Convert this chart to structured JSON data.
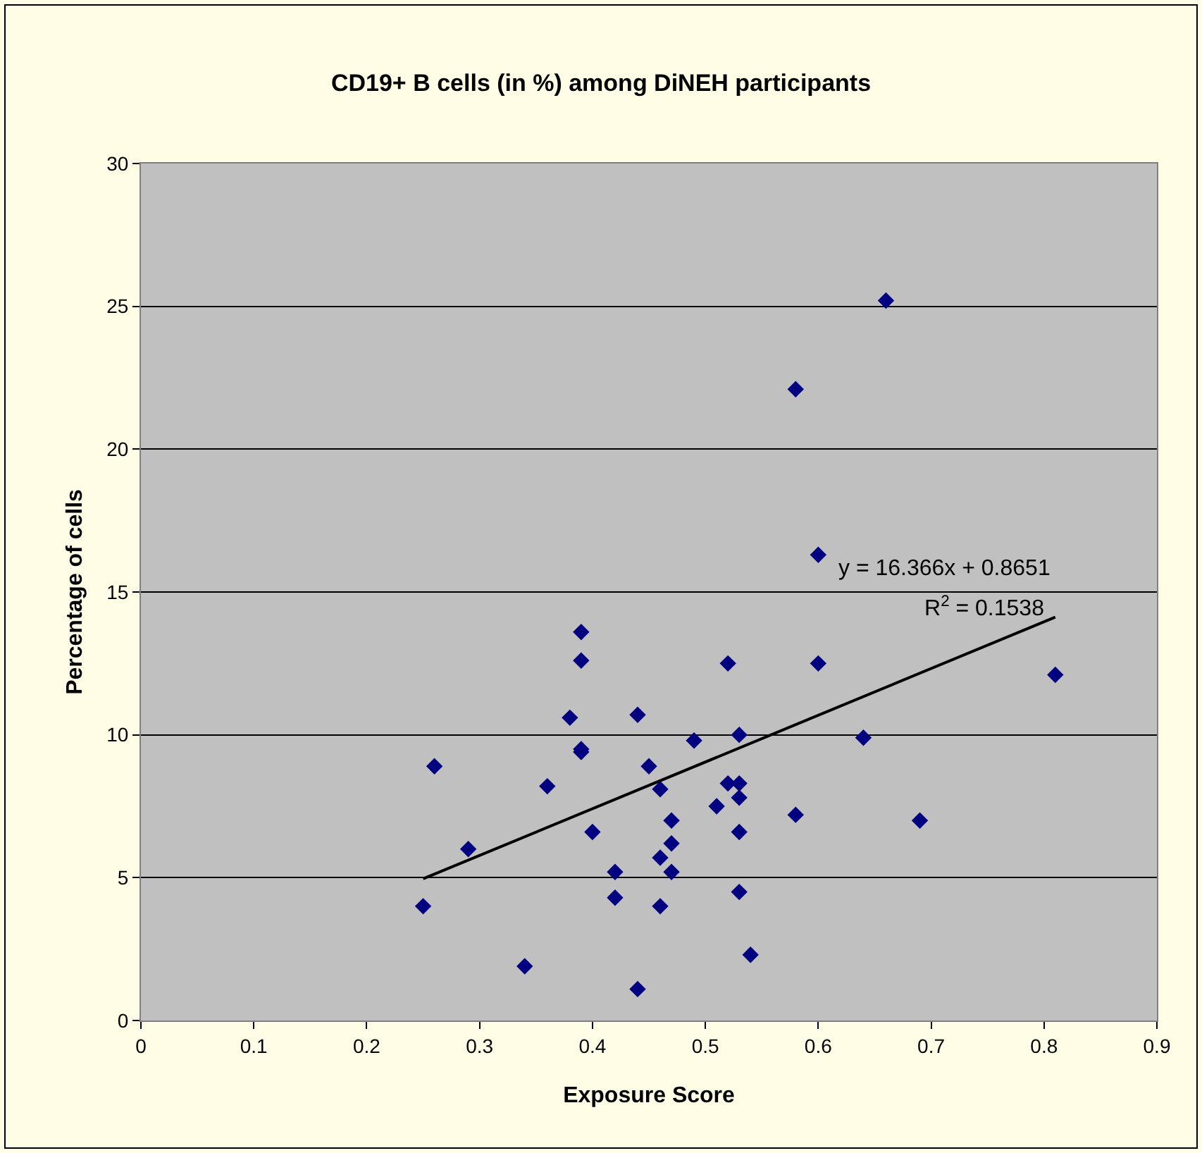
{
  "chart_data": {
    "type": "scatter",
    "title": "CD19+ B cells (in %) among DiNEH participants",
    "xlabel": "Exposure Score",
    "ylabel": "Percentage of cells",
    "annotations": [
      "y = 16.366x + 0.8651",
      "R$^{2}$ = 0.1538"
    ],
    "series": [
      {
        "color": "#000080",
        "marker": "diamond",
        "x": [
          0.25,
          0.26,
          0.29,
          0.34,
          0.36,
          0.38,
          0.39,
          0.39,
          0.39,
          0.39,
          0.4,
          0.42,
          0.42,
          0.44,
          0.44,
          0.45,
          0.46,
          0.46,
          0.46,
          0.47,
          0.47,
          0.47,
          0.49,
          0.51,
          0.52,
          0.52,
          0.53,
          0.53,
          0.53,
          0.53,
          0.53,
          0.54,
          0.58,
          0.58,
          0.6,
          0.6,
          0.64,
          0.66,
          0.69,
          0.81
        ],
        "values": [
          4.0,
          8.9,
          6.0,
          1.9,
          8.2,
          10.6,
          13.6,
          12.6,
          9.5,
          9.4,
          6.6,
          5.2,
          4.3,
          10.7,
          1.1,
          8.9,
          8.1,
          5.7,
          4.0,
          7.0,
          6.2,
          5.2,
          9.8,
          7.5,
          12.5,
          8.3,
          8.3,
          7.8,
          10.0,
          6.6,
          4.5,
          2.3,
          22.1,
          7.2,
          16.3,
          12.5,
          9.9,
          25.2,
          7.0,
          12.1
        ]
      },
      {
        "type": "line",
        "color": "#000000",
        "marker": "none",
        "line_style": "solid",
        "x": [
          0.25,
          0.81
        ],
        "values": [
          4.96,
          14.12
        ]
      }
    ],
    "xlim": [
      0,
      0.9
    ],
    "xticks": [
      0,
      0.1,
      0.2,
      0.3,
      0.4,
      0.5,
      0.6,
      0.7,
      0.8,
      0.9
    ],
    "ylim": [
      0,
      30
    ],
    "yticks": [
      0,
      5,
      10,
      15,
      20,
      25,
      30
    ],
    "grid": "y"
  }
}
